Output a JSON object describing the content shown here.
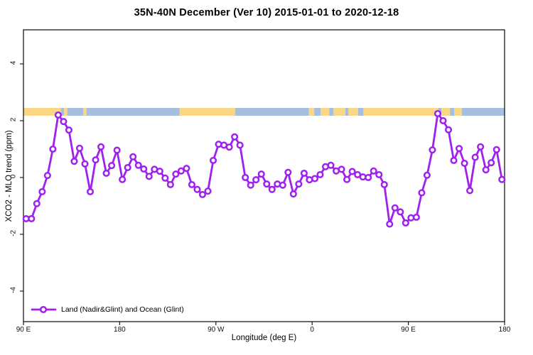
{
  "title": "35N-40N December (Ver 10)   2015-01-01 to 2020-12-18",
  "axes": {
    "xlabel": "Longitude (deg E)",
    "ylabel": "XCO2 - MLO trend (ppm)"
  },
  "legend": {
    "label": "Land (Nadir&Glint) and Ocean (Glint)",
    "marker": "open-circle",
    "color": "#A020F0",
    "position": "bottom-left"
  },
  "chart_data": {
    "type": "line",
    "title": "35N-40N December (Ver 10)   2015-01-01 to 2020-12-18",
    "xlabel": "Longitude (deg E)",
    "ylabel": "XCO2 - MLO trend (ppm)",
    "xlim": [
      90,
      540
    ],
    "ylim": [
      -5.1,
      5.2
    ],
    "grid": false,
    "legend_position": "bottom-left",
    "x_ticks": [
      {
        "value": 90,
        "label": "90 E"
      },
      {
        "value": 180,
        "label": "180"
      },
      {
        "value": 270,
        "label": "90 W"
      },
      {
        "value": 360,
        "label": "0"
      },
      {
        "value": 450,
        "label": "90 E"
      },
      {
        "value": 540,
        "label": "180"
      }
    ],
    "y_ticks": [
      {
        "value": 4,
        "label": "4"
      },
      {
        "value": 2,
        "label": "2"
      },
      {
        "value": 0,
        "label": "0"
      },
      {
        "value": -2,
        "label": "-2"
      },
      {
        "value": -4,
        "label": "-4"
      }
    ],
    "series": [
      {
        "name": "Land (Nadir&Glint) and Ocean (Glint)",
        "color": "#A020F0",
        "marker": "open-circle",
        "x": [
          92.5,
          97.5,
          102.5,
          107.5,
          112.5,
          117.5,
          122.5,
          127.5,
          132.5,
          137.5,
          142.5,
          147.5,
          152.5,
          157.5,
          162.5,
          167.5,
          172.5,
          177.5,
          182.5,
          187.5,
          192.5,
          197.5,
          202.5,
          207.5,
          212.5,
          217.5,
          222.5,
          227.5,
          232.5,
          237.5,
          242.5,
          247.5,
          252.5,
          257.5,
          262.5,
          267.5,
          272.5,
          277.5,
          282.5,
          287.5,
          292.5,
          297.5,
          302.5,
          307.5,
          312.5,
          317.5,
          322.5,
          327.5,
          332.5,
          337.5,
          342.5,
          347.5,
          352.5,
          357.5,
          362.5,
          367.5,
          372.5,
          377.5,
          382.5,
          387.5,
          392.5,
          397.5,
          402.5,
          407.5,
          412.5,
          417.5,
          422.5,
          427.5,
          432.5,
          437.5,
          442.5,
          447.5,
          452.5,
          457.5,
          462.5,
          467.5,
          472.5,
          477.5,
          482.5,
          487.5,
          492.5,
          497.5,
          502.5,
          507.5,
          512.5,
          517.5,
          522.5,
          527.5,
          532.5,
          537.5
        ],
        "y": [
          -1.45,
          -1.45,
          -0.92,
          -0.5,
          0.07,
          1.0,
          2.2,
          1.97,
          1.67,
          0.57,
          1.03,
          0.48,
          -0.5,
          0.62,
          1.08,
          0.15,
          0.42,
          0.96,
          -0.07,
          0.35,
          0.73,
          0.43,
          0.3,
          0.04,
          0.29,
          0.22,
          -0.02,
          -0.25,
          0.12,
          0.23,
          0.32,
          -0.25,
          -0.42,
          -0.6,
          -0.48,
          0.6,
          1.17,
          1.14,
          1.07,
          1.43,
          1.14,
          0.0,
          -0.27,
          -0.08,
          0.12,
          -0.23,
          -0.42,
          -0.23,
          -0.27,
          0.18,
          -0.58,
          -0.23,
          0.15,
          -0.08,
          -0.04,
          0.1,
          0.38,
          0.43,
          0.23,
          0.29,
          -0.07,
          0.21,
          0.1,
          0.02,
          0.0,
          0.23,
          0.1,
          -0.25,
          -1.64,
          -1.07,
          -1.21,
          -1.6,
          -1.42,
          -1.4,
          -0.54,
          0.08,
          0.97,
          2.25,
          2.0,
          1.68,
          0.6,
          1.02,
          0.5,
          -0.46,
          0.71,
          1.08,
          0.27,
          0.52,
          0.98,
          -0.07
        ]
      }
    ],
    "surface_band": {
      "description": "land/ocean surface-type strip",
      "y_range": [
        2.175,
        2.45
      ],
      "colors": {
        "land": "#FBD687",
        "ocean": "#A5BFDE"
      },
      "segments": [
        {
          "from": 90,
          "to": 125,
          "surface": "land"
        },
        {
          "from": 125,
          "to": 128,
          "surface": "ocean"
        },
        {
          "from": 128,
          "to": 131,
          "surface": "land"
        },
        {
          "from": 131,
          "to": 146,
          "surface": "ocean"
        },
        {
          "from": 146,
          "to": 149,
          "surface": "land"
        },
        {
          "from": 149,
          "to": 236,
          "surface": "ocean"
        },
        {
          "from": 236,
          "to": 288,
          "surface": "land"
        },
        {
          "from": 288,
          "to": 357,
          "surface": "ocean"
        },
        {
          "from": 357,
          "to": 362,
          "surface": "land"
        },
        {
          "from": 362,
          "to": 368,
          "surface": "ocean"
        },
        {
          "from": 368,
          "to": 376,
          "surface": "land"
        },
        {
          "from": 376,
          "to": 380,
          "surface": "ocean"
        },
        {
          "from": 380,
          "to": 391,
          "surface": "land"
        },
        {
          "from": 391,
          "to": 394,
          "surface": "ocean"
        },
        {
          "from": 394,
          "to": 403,
          "surface": "land"
        },
        {
          "from": 403,
          "to": 408,
          "surface": "ocean"
        },
        {
          "from": 408,
          "to": 478,
          "surface": "land"
        },
        {
          "from": 478,
          "to": 481,
          "surface": "ocean"
        },
        {
          "from": 481,
          "to": 489,
          "surface": "land"
        },
        {
          "from": 489,
          "to": 493,
          "surface": "ocean"
        },
        {
          "from": 493,
          "to": 500,
          "surface": "land"
        },
        {
          "from": 500,
          "to": 540,
          "surface": "ocean"
        }
      ]
    }
  }
}
